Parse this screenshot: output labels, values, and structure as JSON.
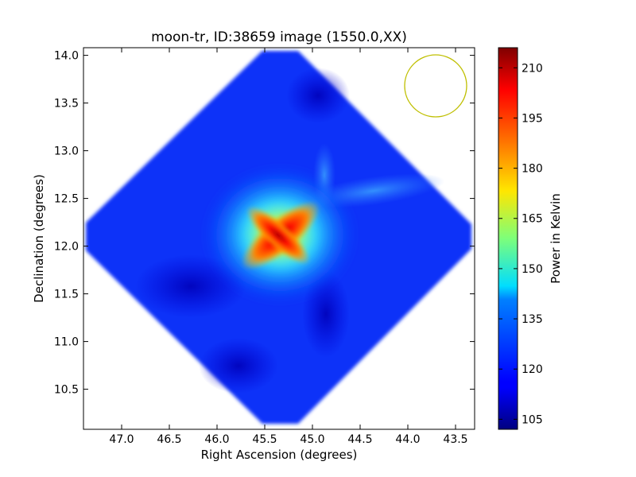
{
  "chart_data": {
    "type": "heatmap",
    "title": "moon-tr, ID:38659 image (1550.0,XX)",
    "xlabel": "Right Ascension (degrees)",
    "ylabel": "Declination (degrees)",
    "colorbar_label": "Power in Kelvin",
    "x_axis_inverted": true,
    "xlim": [
      47.4,
      43.3
    ],
    "ylim": [
      10.08,
      14.08
    ],
    "x_ticks": [
      "47.0",
      "46.5",
      "46.0",
      "45.5",
      "45.0",
      "44.5",
      "44.0",
      "43.5"
    ],
    "y_ticks": [
      "10.5",
      "11.0",
      "11.5",
      "12.0",
      "12.5",
      "13.0",
      "13.5",
      "14.0"
    ],
    "colorbar_range": [
      102,
      216
    ],
    "colorbar_ticks": [
      "105",
      "120",
      "135",
      "150",
      "165",
      "180",
      "195",
      "210"
    ],
    "colormap": "jet",
    "map_center": {
      "ra": 45.35,
      "dec": 12.08
    },
    "peak_value": 212,
    "background_value": 116,
    "beam_circle": {
      "ra": 43.72,
      "dec": 13.7,
      "color": "#bfbf00"
    }
  }
}
